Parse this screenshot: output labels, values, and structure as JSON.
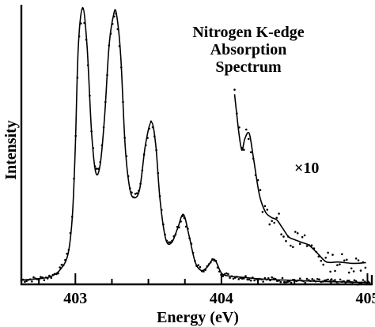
{
  "chart_data": {
    "type": "line",
    "title_lines": [
      "Nitrogen K-edge",
      "Absorption",
      "Spectrum"
    ],
    "xlabel": "Energy (eV)",
    "ylabel": "Intensity",
    "xlim": [
      402.63,
      405.03
    ],
    "ylim": [
      0,
      1.0
    ],
    "x_ticks": [
      403,
      404,
      405
    ],
    "x_tick_labels": [
      "403",
      "404",
      "405"
    ],
    "minor_ticks": [
      402.75,
      403.25,
      403.5,
      403.75,
      404.25,
      404.5,
      404.75
    ],
    "grid": false,
    "legend": "none",
    "annotation": "×10",
    "series": [
      {
        "style": "fitted line with measured points",
        "peaks": [
          {
            "energy": 403.05,
            "intensity": 0.99
          },
          {
            "energy": 403.28,
            "intensity": 0.97
          },
          {
            "energy": 403.52,
            "intensity": 0.58
          },
          {
            "energy": 403.74,
            "intensity": 0.25
          },
          {
            "energy": 403.95,
            "intensity": 0.09
          }
        ],
        "points": [
          [
            402.63,
            0.015
          ],
          [
            402.7,
            0.018
          ],
          [
            402.78,
            0.022
          ],
          [
            402.84,
            0.03
          ],
          [
            402.9,
            0.055
          ],
          [
            402.95,
            0.11
          ],
          [
            402.98,
            0.25
          ],
          [
            403.0,
            0.5
          ],
          [
            403.02,
            0.85
          ],
          [
            403.05,
            0.99
          ],
          [
            403.08,
            0.85
          ],
          [
            403.11,
            0.55
          ],
          [
            403.14,
            0.4
          ],
          [
            403.17,
            0.43
          ],
          [
            403.2,
            0.6
          ],
          [
            403.23,
            0.85
          ],
          [
            403.26,
            0.96
          ],
          [
            403.28,
            0.97
          ],
          [
            403.31,
            0.82
          ],
          [
            403.34,
            0.5
          ],
          [
            403.37,
            0.35
          ],
          [
            403.4,
            0.31
          ],
          [
            403.44,
            0.34
          ],
          [
            403.48,
            0.5
          ],
          [
            403.52,
            0.58
          ],
          [
            403.55,
            0.5
          ],
          [
            403.58,
            0.3
          ],
          [
            403.62,
            0.16
          ],
          [
            403.66,
            0.15
          ],
          [
            403.7,
            0.2
          ],
          [
            403.74,
            0.25
          ],
          [
            403.78,
            0.17
          ],
          [
            403.82,
            0.08
          ],
          [
            403.86,
            0.05
          ],
          [
            403.9,
            0.06
          ],
          [
            403.95,
            0.09
          ],
          [
            404.0,
            0.04
          ],
          [
            404.05,
            0.03
          ],
          [
            404.15,
            0.025
          ],
          [
            404.3,
            0.018
          ],
          [
            404.5,
            0.014
          ],
          [
            404.7,
            0.01
          ],
          [
            404.9,
            0.008
          ],
          [
            405.02,
            0.006
          ]
        ]
      },
      {
        "name": "×10",
        "style": "scaled ×10 fitted line with measured points",
        "points": [
          [
            404.09,
            0.68
          ],
          [
            404.12,
            0.54
          ],
          [
            404.14,
            0.48
          ],
          [
            404.16,
            0.52
          ],
          [
            404.19,
            0.54
          ],
          [
            404.22,
            0.45
          ],
          [
            404.26,
            0.32
          ],
          [
            404.3,
            0.26
          ],
          [
            404.34,
            0.24
          ],
          [
            404.38,
            0.23
          ],
          [
            404.42,
            0.2
          ],
          [
            404.46,
            0.17
          ],
          [
            404.5,
            0.16
          ],
          [
            404.55,
            0.15
          ],
          [
            404.6,
            0.14
          ],
          [
            404.66,
            0.11
          ],
          [
            404.72,
            0.08
          ],
          [
            404.8,
            0.08
          ],
          [
            404.9,
            0.075
          ],
          [
            404.99,
            0.078
          ]
        ]
      }
    ]
  }
}
